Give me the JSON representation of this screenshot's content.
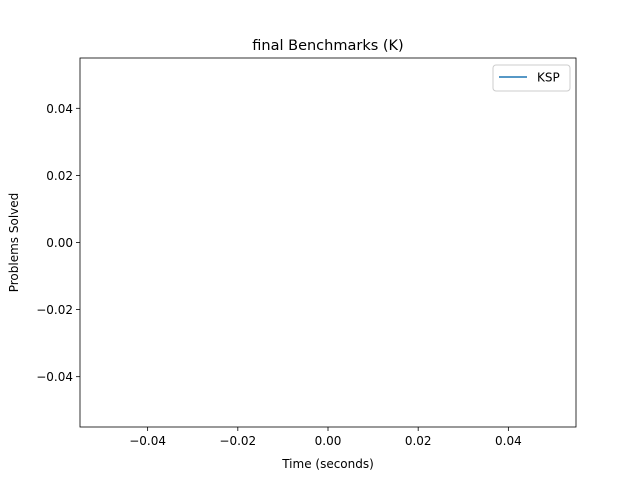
{
  "chart_data": {
    "type": "line",
    "title": "final Benchmarks (K)",
    "xlabel": "Time (seconds)",
    "ylabel": "Problems Solved",
    "xlim": [
      -0.055,
      0.055
    ],
    "ylim": [
      -0.055,
      0.055
    ],
    "x_ticks": [
      -0.04,
      -0.02,
      0.0,
      0.02,
      0.04
    ],
    "y_ticks": [
      -0.04,
      -0.02,
      0.0,
      0.02,
      0.04
    ],
    "x_tick_labels": [
      "−0.04",
      "−0.02",
      "0.00",
      "0.02",
      "0.04"
    ],
    "y_tick_labels": [
      "−0.04",
      "−0.02",
      "0.00",
      "0.02",
      "0.04"
    ],
    "grid": false,
    "legend_position": "top-right",
    "series": [
      {
        "name": "KSP",
        "color": "#1f77b4",
        "x": [],
        "y": []
      }
    ]
  }
}
